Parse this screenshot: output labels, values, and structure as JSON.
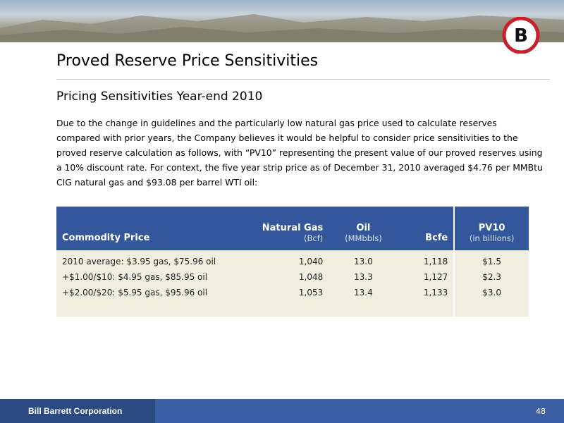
{
  "header": {
    "logo": "B",
    "title": "Proved Reserve Price Sensitivities",
    "subtitle": "Pricing Sensitivities Year-end 2010"
  },
  "body": {
    "paragraph": "Due to the change in guidelines and the particularly low natural gas price used to calculate reserves compared with prior years, the Company believes it would be helpful to consider price sensitivities to the proved reserve calculation as follows, with “PV10” representing the present value of our proved reserves using a 10% discount rate. For context, the five year strip price as of December 31, 2010 averaged $4.76 per MMBtu CIG natural gas and $93.08 per barrel WTI oil:"
  },
  "table": {
    "columns": [
      {
        "label": "Commodity Price"
      },
      {
        "label": "Natural Gas",
        "unit": "(Bcf)"
      },
      {
        "label": "Oil",
        "unit": "(MMbbls)"
      },
      {
        "label": "Bcfe"
      },
      {
        "label": "PV10",
        "unit": "(in billions)"
      }
    ],
    "rows": [
      [
        "2010 average: $3.95 gas, $75.96 oil",
        "1,040",
        "13.0",
        "1,118",
        "$1.5"
      ],
      [
        "+$1.00/$10: $4.95 gas, $85.95 oil",
        "1,048",
        "13.3",
        "1,127",
        "$2.3"
      ],
      [
        "+$2.00/$20: $5.95 gas, $95.96 oil",
        "1,053",
        "13.4",
        "1,133",
        "$3.0"
      ]
    ]
  },
  "footer": {
    "company": "Bill Barrett Corporation",
    "page": "48"
  }
}
